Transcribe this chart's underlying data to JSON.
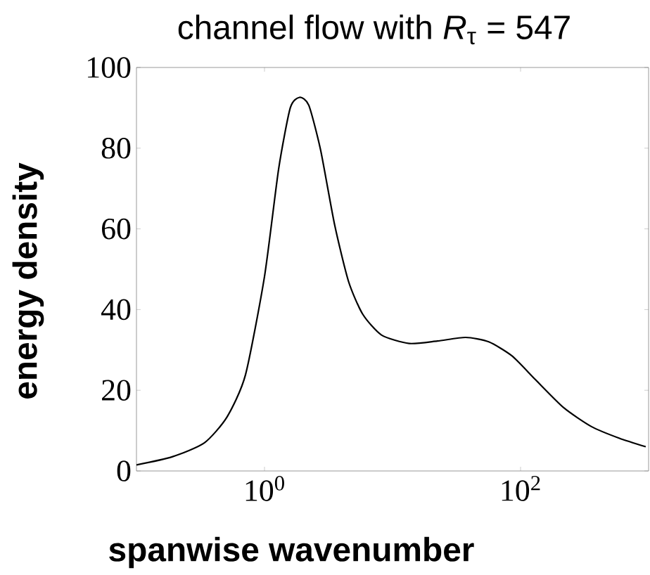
{
  "chart_data": {
    "type": "line",
    "title": "channel flow with *R*$_{τ}$ = 547",
    "xlabel": "spanwise wavenumber",
    "ylabel": "energy density",
    "log": "x",
    "xlim": [
      0.1,
      1000
    ],
    "ylim": [
      0,
      100
    ],
    "xticks": [
      {
        "value": 1,
        "label": "10$^{0}$"
      },
      {
        "value": 100,
        "label": "10$^{2}$"
      }
    ],
    "yticks": [
      0,
      20,
      40,
      60,
      80,
      100
    ],
    "grid": false,
    "series": [
      {
        "color": "#000000",
        "line_style": "solid",
        "x": [
          0.1,
          0.19,
          0.34,
          0.51,
          0.71,
          1,
          1.29,
          1.59,
          1.88,
          2.22,
          2.74,
          3.53,
          4.53,
          5.84,
          8.2,
          13.5,
          22.4,
          37.2,
          56.4,
          85.9,
          131,
          217,
          358,
          592,
          950
        ],
        "values": [
          1.5,
          3.5,
          7.0,
          13.4,
          23.8,
          48.2,
          74.9,
          90.0,
          92.6,
          90.6,
          79.6,
          61.0,
          47.0,
          38.9,
          33.7,
          31.6,
          32.2,
          33.1,
          32.0,
          28.5,
          22.6,
          15.7,
          11.0,
          8.1,
          6.0
        ]
      }
    ]
  }
}
